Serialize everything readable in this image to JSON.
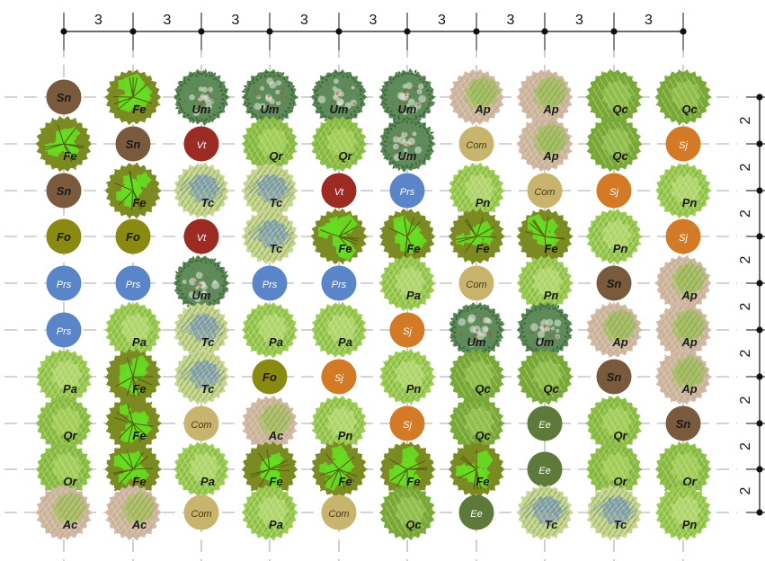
{
  "dimensions": {
    "top": [
      "3",
      "3",
      "3",
      "3",
      "3",
      "3",
      "3",
      "3",
      "3"
    ],
    "right": [
      "2",
      "2",
      "2",
      "2",
      "2",
      "2",
      "2",
      "2",
      "2"
    ]
  },
  "species_styles": {
    "Sn": {
      "kind": "solid",
      "fill": "#7a5a3c"
    },
    "Prs": {
      "kind": "solid",
      "fill": "#5a85c8"
    },
    "Vt": {
      "kind": "solid",
      "fill": "#9b2b23"
    },
    "Sj": {
      "kind": "solid",
      "fill": "#d27a25"
    },
    "Com": {
      "kind": "solid",
      "fill": "#c9b46d"
    },
    "Ee": {
      "kind": "solid",
      "fill": "#5e7a3b"
    },
    "Fo": {
      "kind": "solid",
      "fill": "#8a8a12"
    },
    "Fe": {
      "kind": "canopy",
      "base": "#7c8a22",
      "accent": "#66dd22",
      "style": "foliage"
    },
    "Um": {
      "kind": "canopy",
      "base": "#5f8a5a",
      "accent": "#3d6a3a",
      "style": "dense"
    },
    "Qr": {
      "kind": "canopy",
      "base": "#8fc04a",
      "accent": "#b8dc70",
      "style": "hatch"
    },
    "Qc": {
      "kind": "canopy",
      "base": "#7aaa3a",
      "accent": "#a6d060",
      "style": "hatch"
    },
    "Pa": {
      "kind": "canopy",
      "base": "#9ccc55",
      "accent": "#c8e48a",
      "style": "hatch"
    },
    "Pn": {
      "kind": "canopy",
      "base": "#9ccc55",
      "accent": "#c8e48a",
      "style": "hatch"
    },
    "Ap": {
      "kind": "canopy",
      "base": "#d0b8a4",
      "accent": "#9cc05a",
      "style": "mixed"
    },
    "Ac": {
      "kind": "canopy",
      "base": "#d0b8a4",
      "accent": "#a8c060",
      "style": "mixed"
    },
    "Tc": {
      "kind": "canopy",
      "base": "#c8d494",
      "accent": "#6a8cc0",
      "style": "blue"
    }
  },
  "rows": [
    [
      "Sn",
      "Fe",
      "Um",
      "Um",
      "Um",
      "Um",
      "Ap",
      "Ap",
      "Qc",
      "Qc"
    ],
    [
      "Fe",
      "Sn",
      "Vt",
      "Qr",
      "Qr",
      "Um",
      "Com",
      "Ap",
      "Qc",
      "Sj"
    ],
    [
      "Sn",
      "Fe",
      "Tc",
      "Tc",
      "Vt",
      "Prs",
      "Pn",
      "Com",
      "Sj",
      "Pn"
    ],
    [
      "Fo",
      "Fo",
      "Vt",
      "Tc",
      "Fe",
      "Fe",
      "Fe",
      "Fe",
      "Pn",
      "Sj"
    ],
    [
      "Prs",
      "Prs",
      "Um",
      "Prs",
      "Prs",
      "Pa",
      "Com",
      "Pn",
      "Sn",
      "Ap"
    ],
    [
      "Prs",
      "Pa",
      "Tc",
      "Pa",
      "Pa",
      "Sj",
      "Um",
      "Um",
      "Ap",
      "Ap"
    ],
    [
      "Pa",
      "Fe",
      "Tc",
      "Fo",
      "Sj",
      "Pn",
      "Qc",
      "Qc",
      "Sn",
      "Ap"
    ],
    [
      "Qr",
      "Fe",
      "Com",
      "Ac",
      "Pn",
      "Sj",
      "Qc",
      "Ee",
      "Qr",
      "Sn"
    ],
    [
      "Qr",
      "Fe",
      "Pa",
      "Fe",
      "Fe",
      "Fe",
      "Fe",
      "Ee",
      "Qr",
      "Qr"
    ],
    [
      "Ac",
      "Ac",
      "Com",
      "Pa",
      "Com",
      "Qc",
      "Ee",
      "Tc",
      "Tc",
      "Pn"
    ]
  ]
}
